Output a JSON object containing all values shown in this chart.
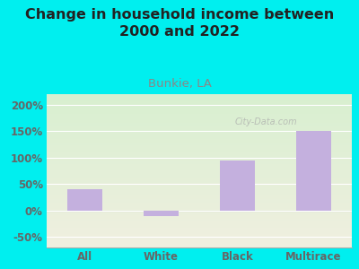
{
  "title": "Change in household income between\n2000 and 2022",
  "subtitle": "Bunkie, LA",
  "categories": [
    "All",
    "White",
    "Black",
    "Multirace"
  ],
  "values": [
    40,
    -10,
    95,
    150
  ],
  "bar_color": "#c4b0de",
  "background_color": "#00efef",
  "plot_bg_color_top": "#d8efd0",
  "plot_bg_color_bottom": "#f0f0e0",
  "title_fontsize": 11.5,
  "subtitle_fontsize": 9.5,
  "subtitle_color": "#888888",
  "tick_color": "#666666",
  "yticks": [
    -50,
    0,
    50,
    100,
    150,
    200
  ],
  "ylim": [
    -70,
    220
  ],
  "watermark": "City-Data.com",
  "grid_color": "#cccccc"
}
